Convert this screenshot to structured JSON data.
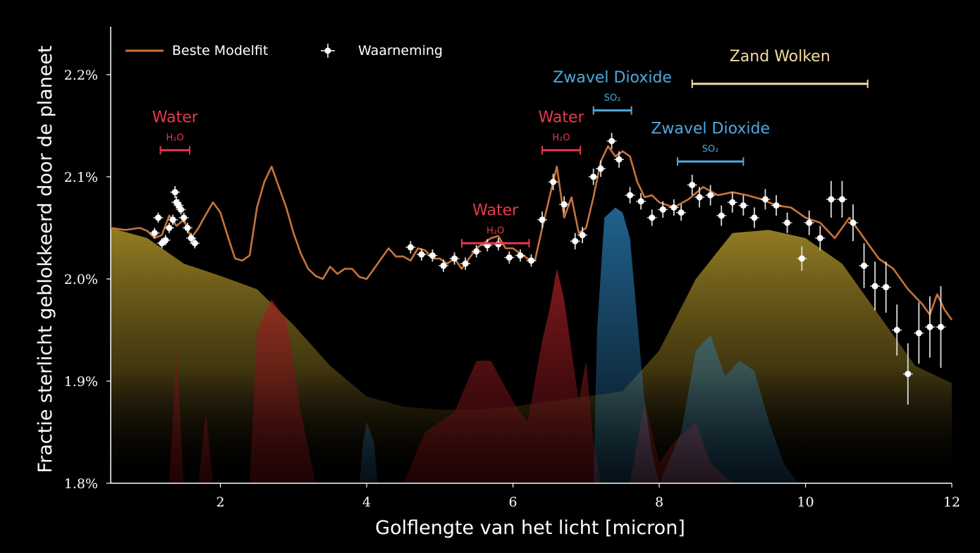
{
  "chart_data": {
    "type": "line",
    "xlabel": "Golflengte van het licht [micron]",
    "ylabel": "Fractie sterlicht geblokkeerd door de planeet",
    "xlim": [
      0.5,
      12.0
    ],
    "ylim": [
      1.8,
      2.25
    ],
    "x_ticks": [
      2,
      4,
      6,
      8,
      10,
      12
    ],
    "y_ticks": [
      1.8,
      1.9,
      2.0,
      2.1,
      2.2
    ],
    "y_tick_labels": [
      "1.8%",
      "1.9%",
      "2.0%",
      "2.1%",
      "2.2%"
    ],
    "legend": {
      "placement": "top-left",
      "model_label": "Beste Modelfit",
      "data_label": "Waarneming"
    },
    "colors": {
      "model": "#c8743a",
      "observation": "#ffffff",
      "water": "#e8394d",
      "so2": "#4fa8e0",
      "clouds": "#f2dca0",
      "cloud_fill": "#8a7420",
      "water_fill": "#a01e1e",
      "so2_fill": "#2f7fb4"
    },
    "model_fit": {
      "x": [
        0.5,
        0.7,
        0.9,
        1.0,
        1.1,
        1.2,
        1.3,
        1.4,
        1.5,
        1.6,
        1.7,
        1.8,
        1.9,
        2.0,
        2.1,
        2.2,
        2.3,
        2.4,
        2.5,
        2.6,
        2.7,
        2.8,
        2.9,
        3.0,
        3.1,
        3.2,
        3.3,
        3.4,
        3.5,
        3.6,
        3.7,
        3.8,
        3.9,
        4.0,
        4.1,
        4.2,
        4.3,
        4.4,
        4.5,
        4.6,
        4.7,
        4.8,
        4.9,
        5.0,
        5.1,
        5.2,
        5.3,
        5.4,
        5.5,
        5.6,
        5.7,
        5.8,
        5.9,
        6.0,
        6.1,
        6.2,
        6.3,
        6.4,
        6.5,
        6.6,
        6.7,
        6.8,
        6.9,
        7.0,
        7.1,
        7.2,
        7.3,
        7.4,
        7.5,
        7.6,
        7.7,
        7.8,
        7.9,
        8.0,
        8.2,
        8.4,
        8.6,
        8.8,
        9.0,
        9.2,
        9.4,
        9.6,
        9.8,
        10.0,
        10.2,
        10.4,
        10.5,
        10.6,
        10.8,
        11.0,
        11.2,
        11.4,
        11.6,
        11.7,
        11.8,
        11.9,
        12.0
      ],
      "y": [
        2.05,
        2.048,
        2.05,
        2.047,
        2.04,
        2.043,
        2.062,
        2.052,
        2.058,
        2.04,
        2.05,
        2.063,
        2.075,
        2.065,
        2.042,
        2.02,
        2.018,
        2.023,
        2.07,
        2.095,
        2.11,
        2.09,
        2.07,
        2.045,
        2.025,
        2.01,
        2.003,
        2.0,
        2.012,
        2.005,
        2.01,
        2.01,
        2.002,
        2.0,
        2.01,
        2.02,
        2.03,
        2.022,
        2.022,
        2.018,
        2.03,
        2.028,
        2.02,
        2.02,
        2.015,
        2.02,
        2.01,
        2.02,
        2.03,
        2.035,
        2.04,
        2.042,
        2.03,
        2.03,
        2.025,
        2.02,
        2.018,
        2.05,
        2.08,
        2.11,
        2.06,
        2.08,
        2.045,
        2.05,
        2.08,
        2.115,
        2.13,
        2.12,
        2.125,
        2.12,
        2.095,
        2.08,
        2.082,
        2.075,
        2.07,
        2.078,
        2.09,
        2.082,
        2.085,
        2.082,
        2.078,
        2.072,
        2.07,
        2.06,
        2.055,
        2.04,
        2.05,
        2.06,
        2.04,
        2.02,
        2.01,
        1.99,
        1.975,
        1.965,
        1.985,
        1.97,
        1.96
      ]
    },
    "observations": {
      "x": [
        1.1,
        1.15,
        1.2,
        1.25,
        1.3,
        1.35,
        1.38,
        1.4,
        1.43,
        1.46,
        1.5,
        1.55,
        1.6,
        1.65,
        4.6,
        4.75,
        4.9,
        5.05,
        5.2,
        5.35,
        5.5,
        5.65,
        5.8,
        5.95,
        6.1,
        6.25,
        6.4,
        6.55,
        6.7,
        6.85,
        6.95,
        7.1,
        7.2,
        7.35,
        7.45,
        7.6,
        7.75,
        7.9,
        8.05,
        8.2,
        8.3,
        8.45,
        8.55,
        8.7,
        8.85,
        9.0,
        9.15,
        9.3,
        9.45,
        9.6,
        9.75,
        9.95,
        10.05,
        10.2,
        10.35,
        10.5,
        10.65,
        10.8,
        10.95,
        11.1,
        11.25,
        11.4,
        11.55,
        11.7,
        11.85
      ],
      "y": [
        2.045,
        2.06,
        2.035,
        2.038,
        2.05,
        2.058,
        2.085,
        2.075,
        2.072,
        2.068,
        2.06,
        2.05,
        2.04,
        2.035,
        2.031,
        2.024,
        2.023,
        2.013,
        2.02,
        2.015,
        2.027,
        2.033,
        2.034,
        2.021,
        2.023,
        2.018,
        2.058,
        2.095,
        2.073,
        2.037,
        2.043,
        2.1,
        2.108,
        2.135,
        2.117,
        2.082,
        2.076,
        2.06,
        2.068,
        2.07,
        2.065,
        2.092,
        2.08,
        2.082,
        2.062,
        2.075,
        2.072,
        2.06,
        2.078,
        2.072,
        2.055,
        2.02,
        2.055,
        2.04,
        2.078,
        2.078,
        2.055,
        2.013,
        1.993,
        1.992,
        1.95,
        1.907,
        1.947,
        1.953,
        1.953
      ],
      "yerr": [
        0.005,
        0.005,
        0.005,
        0.005,
        0.005,
        0.005,
        0.006,
        0.006,
        0.006,
        0.005,
        0.005,
        0.005,
        0.005,
        0.005,
        0.006,
        0.006,
        0.006,
        0.006,
        0.006,
        0.006,
        0.006,
        0.006,
        0.006,
        0.006,
        0.006,
        0.006,
        0.008,
        0.008,
        0.008,
        0.008,
        0.008,
        0.008,
        0.008,
        0.008,
        0.008,
        0.008,
        0.008,
        0.008,
        0.008,
        0.008,
        0.008,
        0.01,
        0.01,
        0.01,
        0.01,
        0.01,
        0.01,
        0.01,
        0.01,
        0.01,
        0.01,
        0.012,
        0.012,
        0.012,
        0.018,
        0.018,
        0.018,
        0.022,
        0.024,
        0.025,
        0.025,
        0.03,
        0.03,
        0.03,
        0.04
      ]
    },
    "contributions": [
      {
        "kind": "clouds",
        "x": [
          0.5,
          1.0,
          1.5,
          2.0,
          2.5,
          3.0,
          3.5,
          4.0,
          4.5,
          5.0,
          5.5,
          6.0,
          6.5,
          7.0,
          7.5,
          8.0,
          8.5,
          9.0,
          9.5,
          10.0,
          10.5,
          11.0,
          11.5,
          12.0
        ],
        "y": [
          2.05,
          2.04,
          2.015,
          2.003,
          1.99,
          1.955,
          1.915,
          1.885,
          1.875,
          1.872,
          1.872,
          1.875,
          1.88,
          1.885,
          1.89,
          1.93,
          2.0,
          2.045,
          2.048,
          2.04,
          2.015,
          1.965,
          1.915,
          1.898
        ]
      },
      {
        "kind": "water",
        "x": [
          0.5,
          1.3,
          1.4,
          1.5,
          1.7,
          1.8,
          1.9,
          2.1,
          2.4,
          2.5,
          2.7,
          2.9,
          3.1,
          3.3,
          3.5,
          4.1,
          4.5,
          4.8,
          5.0,
          5.2,
          5.5,
          5.7,
          6.0,
          6.2,
          6.4,
          6.5,
          6.6,
          6.7,
          6.8,
          6.9,
          7.0,
          7.1,
          7.2,
          7.4,
          7.6,
          7.8,
          8.0,
          8.2,
          8.5,
          8.7,
          9.0,
          12.0
        ],
        "y": [
          1.8,
          1.8,
          1.93,
          1.8,
          1.8,
          1.87,
          1.8,
          1.8,
          1.8,
          1.95,
          1.98,
          1.96,
          1.87,
          1.8,
          1.8,
          1.8,
          1.8,
          1.85,
          1.86,
          1.87,
          1.92,
          1.92,
          1.88,
          1.86,
          1.94,
          1.97,
          2.01,
          1.98,
          1.93,
          1.88,
          1.92,
          1.84,
          1.8,
          1.8,
          1.8,
          1.88,
          1.82,
          1.84,
          1.86,
          1.82,
          1.8,
          1.8
        ]
      },
      {
        "kind": "so2",
        "x": [
          3.9,
          3.95,
          4.0,
          4.1,
          4.15,
          6.9,
          7.1,
          7.15,
          7.25,
          7.4,
          7.5,
          7.6,
          7.7,
          7.8,
          7.9,
          8.0,
          8.3,
          8.5,
          8.7,
          8.9,
          9.1,
          9.3,
          9.5,
          9.7,
          9.9,
          12.0
        ],
        "y": [
          1.8,
          1.84,
          1.86,
          1.84,
          1.8,
          1.8,
          1.8,
          1.95,
          2.06,
          2.07,
          2.065,
          2.04,
          1.96,
          1.88,
          1.83,
          1.8,
          1.85,
          1.93,
          1.945,
          1.905,
          1.92,
          1.91,
          1.86,
          1.82,
          1.8,
          1.8
        ]
      }
    ]
  },
  "annotations": [
    {
      "id": "water1",
      "label": "Water",
      "formula": "H₂O",
      "x0": 1.18,
      "x1": 1.58,
      "y": 2.126,
      "ann_color": "#e8394d",
      "label_gap": 40,
      "formula_gap": 14,
      "bold": true
    },
    {
      "id": "water2",
      "label": "Water",
      "formula": "H₂O",
      "x0": 5.3,
      "x1": 6.22,
      "y": 2.035,
      "ann_color": "#e8394d",
      "label_gap": 40,
      "formula_gap": 14,
      "bold": true
    },
    {
      "id": "water3",
      "label": "Water",
      "formula": "H₂O",
      "x0": 6.4,
      "x1": 6.92,
      "y": 2.126,
      "ann_color": "#e8394d",
      "label_gap": 40,
      "formula_gap": 14,
      "bold": true
    },
    {
      "id": "so2_1",
      "label": "Zwavel Dioxide",
      "formula": "SO₂",
      "x0": 7.1,
      "x1": 7.62,
      "y": 2.165,
      "ann_color": "#4fa8e0",
      "label_gap": 40,
      "formula_gap": 14,
      "bold": true
    },
    {
      "id": "so2_2",
      "label": "Zwavel Dioxide",
      "formula": "SO₂",
      "x0": 8.25,
      "x1": 9.15,
      "y": 2.115,
      "ann_color": "#4fa8e0",
      "label_gap": 40,
      "formula_gap": 14,
      "bold": true
    },
    {
      "id": "clouds",
      "label": "Zand Wolken",
      "formula": "",
      "x0": 8.45,
      "x1": 10.85,
      "y": 2.191,
      "ann_color": "#f2dca0",
      "label_gap": 32,
      "formula_gap": 0,
      "bold": false
    }
  ]
}
